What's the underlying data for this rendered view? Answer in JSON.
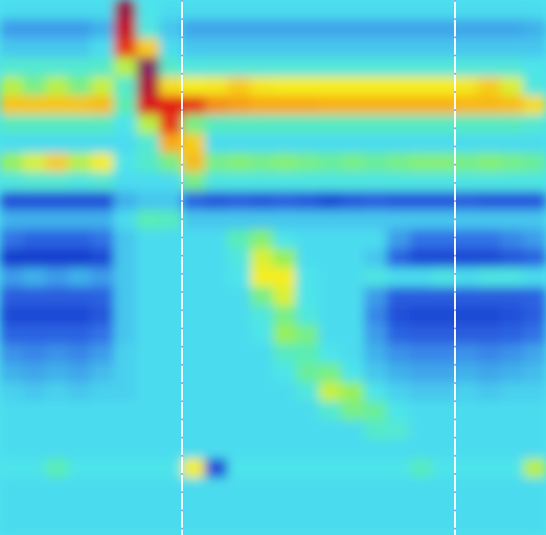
{
  "chart_data": {
    "type": "heatmap",
    "tick_labels": false,
    "grid": false,
    "xlim": [
      0,
      24
    ],
    "ylim": [
      0,
      28
    ],
    "zlim": [
      -10,
      150
    ],
    "markers_x": [
      8,
      20
    ],
    "cells": [
      [
        10,
        10,
        10,
        10,
        10,
        130,
        12,
        10,
        10,
        10,
        10,
        10,
        10,
        10,
        10,
        10,
        10,
        10,
        10,
        10,
        10,
        10,
        10,
        10
      ],
      [
        4,
        4,
        4,
        4,
        6,
        110,
        15,
        8,
        5,
        5,
        5,
        5,
        5,
        5,
        5,
        5,
        5,
        5,
        5,
        5,
        5,
        5,
        5,
        6
      ],
      [
        8,
        8,
        8,
        8,
        10,
        90,
        60,
        10,
        8,
        8,
        8,
        8,
        8,
        8,
        8,
        8,
        8,
        8,
        8,
        8,
        8,
        8,
        8,
        8
      ],
      [
        18,
        18,
        18,
        18,
        20,
        40,
        140,
        20,
        15,
        16,
        16,
        16,
        16,
        16,
        16,
        16,
        16,
        16,
        16,
        16,
        16,
        16,
        16,
        12
      ],
      [
        40,
        30,
        40,
        30,
        42,
        20,
        120,
        55,
        50,
        52,
        60,
        52,
        50,
        50,
        50,
        50,
        50,
        50,
        50,
        50,
        52,
        60,
        45,
        15
      ],
      [
        62,
        62,
        62,
        62,
        65,
        25,
        100,
        95,
        90,
        75,
        72,
        70,
        70,
        70,
        68,
        68,
        68,
        68,
        68,
        68,
        66,
        66,
        64,
        55
      ],
      [
        22,
        22,
        22,
        22,
        22,
        12,
        40,
        90,
        30,
        22,
        22,
        22,
        22,
        22,
        22,
        22,
        22,
        22,
        22,
        22,
        22,
        22,
        22,
        18
      ],
      [
        10,
        10,
        10,
        10,
        10,
        10,
        18,
        70,
        60,
        10,
        10,
        10,
        10,
        10,
        10,
        10,
        10,
        10,
        10,
        10,
        10,
        10,
        10,
        10
      ],
      [
        35,
        45,
        60,
        40,
        50,
        12,
        20,
        30,
        65,
        30,
        32,
        30,
        32,
        30,
        28,
        30,
        28,
        30,
        32,
        32,
        30,
        32,
        30,
        28
      ],
      [
        15,
        18,
        18,
        15,
        18,
        10,
        10,
        10,
        30,
        14,
        14,
        14,
        14,
        14,
        14,
        14,
        14,
        14,
        14,
        14,
        14,
        14,
        14,
        14
      ],
      [
        -5,
        -5,
        -5,
        -5,
        -5,
        6,
        8,
        8,
        -2,
        -4,
        -3,
        -4,
        -3,
        -4,
        -6,
        -4,
        -3,
        -4,
        -4,
        -4,
        -3,
        -4,
        -4,
        -4
      ],
      [
        6,
        6,
        6,
        6,
        6,
        10,
        25,
        22,
        8,
        8,
        8,
        8,
        8,
        8,
        8,
        8,
        8,
        8,
        8,
        8,
        8,
        8,
        8,
        8
      ],
      [
        0,
        -2,
        -2,
        -2,
        0,
        8,
        10,
        10,
        10,
        10,
        25,
        32,
        12,
        10,
        10,
        10,
        10,
        4,
        0,
        0,
        0,
        0,
        2,
        4
      ],
      [
        -8,
        -8,
        -8,
        -8,
        -6,
        8,
        10,
        10,
        10,
        10,
        15,
        45,
        35,
        10,
        10,
        10,
        8,
        -2,
        -6,
        -6,
        -6,
        -6,
        -4,
        -2
      ],
      [
        4,
        6,
        4,
        6,
        4,
        8,
        10,
        10,
        10,
        10,
        12,
        50,
        50,
        12,
        10,
        10,
        14,
        10,
        10,
        14,
        10,
        14,
        14,
        10
      ],
      [
        -3,
        -3,
        -3,
        -3,
        -2,
        8,
        10,
        10,
        10,
        10,
        10,
        30,
        45,
        12,
        10,
        10,
        4,
        -3,
        -3,
        -3,
        -3,
        -3,
        -3,
        -2
      ],
      [
        -6,
        -6,
        -6,
        -6,
        -4,
        8,
        10,
        10,
        10,
        10,
        10,
        15,
        30,
        15,
        10,
        10,
        2,
        -5,
        -6,
        -6,
        -6,
        -6,
        -5,
        -3
      ],
      [
        -2,
        -2,
        -2,
        -2,
        0,
        8,
        10,
        10,
        10,
        10,
        10,
        12,
        35,
        30,
        10,
        10,
        4,
        -2,
        -3,
        -3,
        -3,
        -3,
        -2,
        0
      ],
      [
        3,
        2,
        3,
        2,
        4,
        9,
        10,
        10,
        10,
        10,
        10,
        10,
        22,
        25,
        12,
        10,
        6,
        3,
        2,
        2,
        3,
        2,
        3,
        5
      ],
      [
        6,
        5,
        6,
        5,
        7,
        9,
        10,
        10,
        10,
        10,
        10,
        10,
        12,
        28,
        30,
        12,
        8,
        6,
        5,
        5,
        6,
        5,
        6,
        7
      ],
      [
        9,
        8,
        9,
        8,
        9,
        9,
        10,
        10,
        10,
        10,
        10,
        10,
        10,
        15,
        42,
        35,
        12,
        9,
        8,
        8,
        9,
        8,
        9,
        9
      ],
      [
        10,
        10,
        10,
        10,
        10,
        10,
        10,
        10,
        10,
        10,
        10,
        10,
        10,
        10,
        18,
        30,
        28,
        12,
        10,
        10,
        10,
        10,
        10,
        10
      ],
      [
        10,
        10,
        10,
        10,
        10,
        10,
        10,
        10,
        10,
        10,
        10,
        10,
        10,
        10,
        10,
        10,
        20,
        18,
        10,
        10,
        10,
        10,
        10,
        10
      ],
      [
        10,
        10,
        10,
        10,
        10,
        10,
        10,
        10,
        10,
        10,
        10,
        10,
        10,
        10,
        10,
        10,
        10,
        10,
        10,
        10,
        10,
        10,
        10,
        10
      ],
      [
        12,
        12,
        25,
        12,
        12,
        12,
        12,
        12,
        50,
        -5,
        12,
        12,
        12,
        12,
        12,
        12,
        12,
        12,
        22,
        12,
        12,
        12,
        12,
        40
      ],
      [
        10,
        10,
        10,
        10,
        10,
        10,
        10,
        10,
        10,
        10,
        10,
        10,
        10,
        10,
        10,
        10,
        10,
        10,
        10,
        10,
        10,
        10,
        10,
        10
      ],
      [
        10,
        10,
        10,
        10,
        10,
        10,
        10,
        10,
        10,
        10,
        10,
        10,
        10,
        10,
        10,
        10,
        10,
        10,
        10,
        10,
        10,
        10,
        10,
        10
      ],
      [
        10,
        10,
        10,
        10,
        10,
        10,
        10,
        10,
        10,
        10,
        10,
        10,
        10,
        10,
        10,
        10,
        10,
        10,
        10,
        10,
        10,
        10,
        10,
        10
      ]
    ]
  }
}
